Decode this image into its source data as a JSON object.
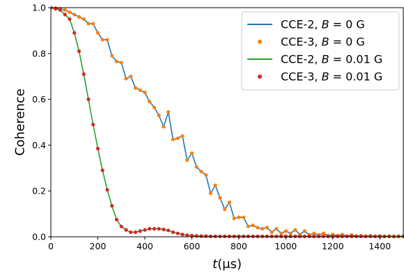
{
  "chart_data": {
    "type": "line",
    "xlabel": "t(μs)",
    "ylabel": "Coherence",
    "xlim": [
      0,
      1500
    ],
    "ylim": [
      0,
      1.0
    ],
    "xticks": [
      0,
      200,
      400,
      600,
      800,
      1000,
      1200,
      1400
    ],
    "yticks": [
      0.0,
      0.2,
      0.4,
      0.6,
      0.8,
      1.0
    ],
    "xtick_labels": [
      "0",
      "200",
      "400",
      "600",
      "800",
      "1000",
      "1200",
      "1400"
    ],
    "ytick_labels": [
      "0.0",
      "0.2",
      "0.4",
      "0.6",
      "0.8",
      "1.0"
    ],
    "grid": false,
    "legend_position": "top-right",
    "series": [
      {
        "name": "CCE-2, B = 0 G",
        "legend": {
          "prefix": "CCE-2, ",
          "var": "B",
          "suffix": " = 0 G"
        },
        "kind": "line",
        "color": "#1f77b4",
        "x": [
          0,
          20,
          40,
          60,
          80,
          100,
          120,
          140,
          160,
          180,
          200,
          220,
          240,
          260,
          280,
          300,
          320,
          340,
          360,
          380,
          400,
          420,
          440,
          460,
          480,
          500,
          520,
          540,
          560,
          580,
          600,
          620,
          640,
          660,
          680,
          700,
          720,
          740,
          760,
          780,
          800,
          820,
          840,
          860,
          880,
          900,
          920,
          940,
          960,
          980,
          1000,
          1020,
          1040,
          1060,
          1080,
          1100,
          1120,
          1140,
          1160,
          1180,
          1200,
          1220,
          1240,
          1260,
          1280,
          1300,
          1320,
          1340,
          1360,
          1380,
          1400,
          1420,
          1440,
          1460,
          1480,
          1500
        ],
        "y": [
          1.0,
          0.998,
          0.995,
          0.99,
          0.98,
          0.97,
          0.96,
          0.95,
          0.93,
          0.93,
          0.89,
          0.86,
          0.86,
          0.79,
          0.765,
          0.76,
          0.69,
          0.7,
          0.65,
          0.64,
          0.63,
          0.59,
          0.565,
          0.53,
          0.48,
          0.545,
          0.425,
          0.43,
          0.44,
          0.335,
          0.365,
          0.305,
          0.285,
          0.27,
          0.19,
          0.225,
          0.17,
          0.12,
          0.15,
          0.08,
          0.085,
          0.085,
          0.045,
          0.05,
          0.04,
          0.035,
          0.04,
          0.02,
          0.035,
          0.015,
          0.025,
          0.015,
          0.03,
          0.01,
          0.025,
          0.008,
          0.015,
          0.008,
          0.015,
          0.005,
          0.01,
          0.005,
          0.01,
          0.003,
          0.008,
          0.003,
          0.005,
          0.002,
          0.005,
          0.002,
          0.004,
          0.001,
          0.003,
          0.001,
          0.002,
          0.001
        ]
      },
      {
        "name": "CCE-3, B = 0 G",
        "legend": {
          "prefix": "CCE-3, ",
          "var": "B",
          "suffix": " = 0 G"
        },
        "kind": "scatter",
        "color": "#ff7f0e",
        "x": [
          0,
          20,
          40,
          60,
          80,
          100,
          120,
          140,
          160,
          180,
          200,
          220,
          240,
          260,
          280,
          300,
          320,
          340,
          360,
          380,
          400,
          420,
          440,
          460,
          480,
          500,
          520,
          540,
          560,
          580,
          600,
          620,
          640,
          660,
          680,
          700,
          720,
          740,
          760,
          780,
          800,
          820,
          840,
          860,
          880,
          900,
          920,
          940,
          960,
          980,
          1000,
          1020,
          1040,
          1060,
          1080,
          1100,
          1120,
          1140,
          1160,
          1180,
          1200,
          1220,
          1240,
          1260,
          1280,
          1300,
          1320,
          1340,
          1360,
          1380,
          1400,
          1420,
          1440,
          1460,
          1480,
          1500
        ],
        "y": [
          1.0,
          0.998,
          0.995,
          0.99,
          0.98,
          0.97,
          0.96,
          0.95,
          0.93,
          0.93,
          0.89,
          0.86,
          0.86,
          0.79,
          0.765,
          0.76,
          0.69,
          0.7,
          0.65,
          0.64,
          0.63,
          0.59,
          0.565,
          0.53,
          0.48,
          0.545,
          0.425,
          0.43,
          0.44,
          0.335,
          0.365,
          0.305,
          0.285,
          0.27,
          0.19,
          0.225,
          0.17,
          0.12,
          0.15,
          0.08,
          0.085,
          0.085,
          0.045,
          0.05,
          0.04,
          0.035,
          0.04,
          0.02,
          0.035,
          0.015,
          0.025,
          0.015,
          0.03,
          0.01,
          0.025,
          0.008,
          0.015,
          0.008,
          0.015,
          0.005,
          0.01,
          0.005,
          0.01,
          0.003,
          0.008,
          0.003,
          0.005,
          0.002,
          0.005,
          0.002,
          0.004,
          0.001,
          0.003,
          0.001,
          0.002,
          0.001
        ]
      },
      {
        "name": "CCE-2, B = 0.01 G",
        "legend": {
          "prefix": "CCE-2, ",
          "var": "B",
          "suffix": " = 0.01 G"
        },
        "kind": "line",
        "color": "#2ca02c",
        "x": [
          0,
          20,
          40,
          60,
          80,
          100,
          120,
          140,
          160,
          180,
          200,
          220,
          240,
          260,
          280,
          300,
          320,
          340,
          360,
          380,
          400,
          420,
          440,
          460,
          480,
          500,
          520,
          540,
          560,
          580,
          600,
          620,
          640,
          660,
          680,
          700,
          720,
          740,
          760,
          780,
          800,
          820,
          840,
          860,
          880,
          900,
          920,
          940,
          960,
          980,
          1000,
          1020,
          1040,
          1060,
          1080,
          1100,
          1120,
          1140,
          1160,
          1180,
          1200,
          1220,
          1240,
          1260,
          1280,
          1300,
          1320,
          1340,
          1360,
          1380,
          1400,
          1420,
          1440,
          1460,
          1480,
          1500
        ],
        "y": [
          1.0,
          0.995,
          0.99,
          0.97,
          0.95,
          0.89,
          0.81,
          0.71,
          0.6,
          0.49,
          0.385,
          0.29,
          0.205,
          0.135,
          0.075,
          0.045,
          0.03,
          0.02,
          0.02,
          0.025,
          0.03,
          0.035,
          0.035,
          0.035,
          0.032,
          0.028,
          0.02,
          0.015,
          0.01,
          0.007,
          0.005,
          0.004,
          0.003,
          0.003,
          0.002,
          0.002,
          0.002,
          0.002,
          0.002,
          0.002,
          0.002,
          0.002,
          0.002,
          0.002,
          0.002,
          0.002,
          0.002,
          0.002,
          0.002,
          0.002,
          0.002,
          0.002,
          0.002,
          0.002,
          0.002,
          0.002,
          0.002,
          0.002,
          0.002,
          0.002,
          0.002,
          0.002,
          0.002,
          0.002,
          0.002,
          0.002,
          0.002,
          0.002,
          0.002,
          0.002,
          0.002,
          0.002,
          0.002,
          0.002,
          0.002,
          0.002
        ]
      },
      {
        "name": "CCE-3, B = 0.01 G",
        "legend": {
          "prefix": "CCE-3, ",
          "var": "B",
          "suffix": " = 0.01 G"
        },
        "kind": "scatter",
        "color": "#d62728",
        "x": [
          0,
          20,
          40,
          60,
          80,
          100,
          120,
          140,
          160,
          180,
          200,
          220,
          240,
          260,
          280,
          300,
          320,
          340,
          360,
          380,
          400,
          420,
          440,
          460,
          480,
          500,
          520,
          540,
          560,
          580,
          600,
          620,
          640,
          660,
          680,
          700,
          720,
          740,
          760,
          780,
          800,
          820,
          840,
          860,
          880,
          900,
          920,
          940,
          960,
          980,
          1000,
          1020,
          1040,
          1060,
          1080,
          1100,
          1120,
          1140,
          1160,
          1180,
          1200,
          1220,
          1240,
          1260,
          1280,
          1300,
          1320,
          1340,
          1360,
          1380,
          1400,
          1420,
          1440,
          1460,
          1480,
          1500
        ],
        "y": [
          1.0,
          0.995,
          0.99,
          0.97,
          0.95,
          0.89,
          0.81,
          0.71,
          0.6,
          0.49,
          0.385,
          0.29,
          0.205,
          0.135,
          0.075,
          0.045,
          0.03,
          0.02,
          0.02,
          0.025,
          0.03,
          0.035,
          0.035,
          0.035,
          0.032,
          0.028,
          0.02,
          0.015,
          0.01,
          0.007,
          0.005,
          0.004,
          0.003,
          0.003,
          0.002,
          0.002,
          0.002,
          0.002,
          0.002,
          0.002,
          0.002,
          0.002,
          0.002,
          0.002,
          0.002,
          0.002,
          0.002,
          0.002,
          0.002,
          0.002,
          0.002,
          0.002,
          0.002,
          0.002,
          0.002,
          0.002,
          0.002,
          0.002,
          0.002,
          0.002,
          0.002,
          0.002,
          0.002,
          0.002,
          0.002,
          0.002,
          0.002,
          0.002,
          0.002,
          0.002,
          0.002,
          0.002,
          0.002,
          0.002,
          0.002,
          0.002
        ]
      }
    ]
  }
}
